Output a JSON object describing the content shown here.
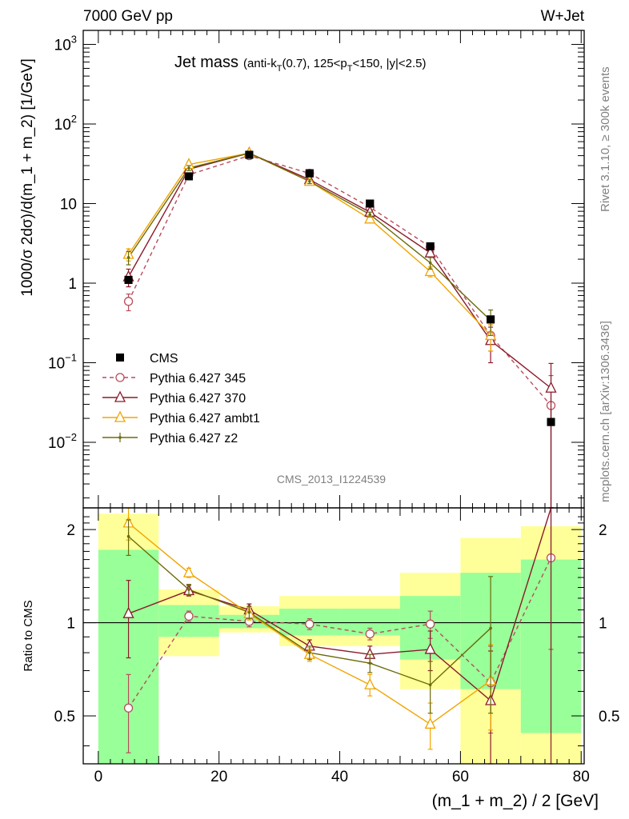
{
  "header": {
    "left": "7000 GeV pp",
    "right": "W+Jet"
  },
  "side_texts": {
    "rivet": "Rivet 3.1.10, ≥ 300k events",
    "mcplots": "mcplots.cern.ch [arXiv:1306.3436]"
  },
  "analysis_id": "CMS_2013_I1224539",
  "chart_data": [
    {
      "type": "line",
      "panel": "main",
      "title": "Jet mass",
      "title_detail": "(anti-kT(0.7), 125<pT<150, |y|<2.5)",
      "ylabel": "1000/σ 2dσ)/d(m_1 + m_2) [1/GeV]",
      "yscale": "log",
      "ylim": [
        0.0015,
        1500
      ],
      "xlim": [
        -2.5,
        80.5
      ],
      "y_tick_labels": [
        "10^-2",
        "10^-1",
        "1",
        "10",
        "10^2",
        "10^3"
      ],
      "legend_position": "middle-left",
      "x": [
        5,
        15,
        25,
        35,
        45,
        55,
        65,
        75
      ],
      "series": [
        {
          "name": "CMS",
          "color": "#000000",
          "marker": "square",
          "values": [
            1.1,
            22,
            41,
            24,
            10,
            2.9,
            0.35,
            0.018
          ]
        },
        {
          "name": "Pythia 6.427 345",
          "color": "#b84c5c",
          "marker": "circle-open",
          "dashed": true,
          "values": [
            0.59,
            23,
            40,
            24,
            9,
            2.85,
            0.22,
            0.029
          ],
          "errors": [
            0.14,
            1.5,
            2,
            1.5,
            0.6,
            0.3,
            0.08,
            0.04
          ]
        },
        {
          "name": "Pythia 6.427 370",
          "color": "#8b1a2a",
          "marker": "triangle-open",
          "values": [
            1.2,
            27,
            43,
            20,
            7.8,
            2.4,
            0.19,
            0.048
          ],
          "errors": [
            0.3,
            2,
            2.5,
            1.3,
            0.5,
            0.3,
            0.09,
            0.05
          ]
        },
        {
          "name": "Pythia 6.427 ambt1",
          "color": "#f0a500",
          "marker": "triangle-open",
          "values": [
            2.3,
            31,
            43,
            19,
            6.4,
            1.4,
            0.22,
            null
          ],
          "errors": [
            0.4,
            2,
            2.5,
            1.2,
            0.5,
            0.2,
            0.08,
            0
          ]
        },
        {
          "name": "Pythia 6.427 z2",
          "color": "#6b6b0a",
          "marker": "dot",
          "values": [
            2.1,
            28,
            43,
            19,
            7.3,
            1.8,
            0.34,
            null
          ],
          "errors": [
            0.4,
            2,
            2.5,
            1.2,
            0.5,
            0.3,
            0.12,
            0
          ]
        }
      ]
    },
    {
      "type": "line",
      "panel": "ratio",
      "ylabel": "Ratio to CMS",
      "xlabel": "(m_1 + m_2) / 2 [GeV]",
      "yscale": "log",
      "ylim": [
        0.35,
        2.35
      ],
      "xlim": [
        -2.5,
        80.5
      ],
      "x_ticks": [
        0,
        20,
        40,
        60,
        80
      ],
      "y_ticks": [
        0.5,
        1,
        2
      ],
      "bands": {
        "edges": [
          0,
          10,
          20,
          30,
          40,
          50,
          60,
          70,
          80
        ],
        "yellow_low": [
          0.35,
          0.78,
          0.93,
          0.84,
          0.84,
          0.61,
          0.35,
          0.35
        ],
        "yellow_high": [
          2.25,
          1.28,
          1.13,
          1.22,
          1.22,
          1.45,
          1.88,
          2.05
        ],
        "green_low": [
          0.35,
          0.9,
          0.96,
          0.91,
          0.91,
          0.76,
          0.61,
          0.44
        ],
        "green_high": [
          1.72,
          1.14,
          1.06,
          1.11,
          1.11,
          1.22,
          1.45,
          1.6
        ]
      },
      "x": [
        5,
        15,
        25,
        35,
        45,
        55,
        65,
        75
      ],
      "series": [
        {
          "name": "Pythia 6.427 345",
          "color": "#b84c5c",
          "marker": "circle-open",
          "dashed": true,
          "values": [
            0.53,
            1.05,
            1.01,
            0.99,
            0.92,
            0.99,
            0.64,
            1.62
          ],
          "errors": [
            0.15,
            0.04,
            0.04,
            0.04,
            0.04,
            0.1,
            0.2,
            0.8
          ]
        },
        {
          "name": "Pythia 6.427 370",
          "color": "#8b1a2a",
          "marker": "triangle-open",
          "values": [
            1.07,
            1.27,
            1.1,
            0.84,
            0.79,
            0.82,
            0.56,
            2.65
          ],
          "errors": [
            0.3,
            0.05,
            0.05,
            0.04,
            0.05,
            0.12,
            0.25,
            2.5
          ]
        },
        {
          "name": "Pythia 6.427 ambt1",
          "color": "#f0a500",
          "marker": "triangle-open",
          "values": [
            2.1,
            1.45,
            1.07,
            0.79,
            0.63,
            0.47,
            0.65,
            null
          ],
          "errors": [
            0.25,
            0.05,
            0.05,
            0.04,
            0.05,
            0.08,
            0.2,
            0
          ]
        },
        {
          "name": "Pythia 6.427 z2",
          "color": "#6b6b0a",
          "marker": "dot",
          "values": [
            1.9,
            1.28,
            1.08,
            0.8,
            0.74,
            0.63,
            0.96,
            null
          ],
          "errors": [
            0.25,
            0.05,
            0.05,
            0.04,
            0.05,
            0.12,
            0.45,
            0
          ]
        }
      ]
    }
  ]
}
